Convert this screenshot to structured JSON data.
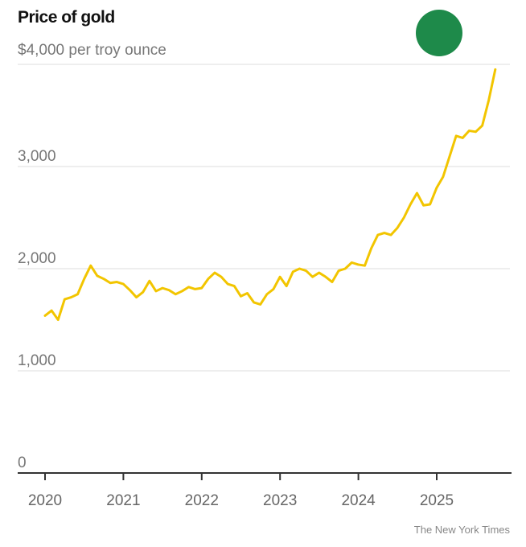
{
  "chart_data": {
    "type": "line",
    "title": "Price of gold",
    "ylabel": "$4,000 per troy ounce",
    "credit": "The New York Times",
    "ylim": [
      0,
      4000
    ],
    "xlim": [
      2019.92,
      2025.95
    ],
    "y_ticks": [
      {
        "value": 3000,
        "label": "3,000"
      },
      {
        "value": 2000,
        "label": "2,000"
      },
      {
        "value": 1000,
        "label": "1,000"
      },
      {
        "value": 0,
        "label": "0"
      }
    ],
    "x_ticks": [
      {
        "value": 2020,
        "label": "2020"
      },
      {
        "value": 2021,
        "label": "2021"
      },
      {
        "value": 2022,
        "label": "2022"
      },
      {
        "value": 2023,
        "label": "2023"
      },
      {
        "value": 2024,
        "label": "2024"
      },
      {
        "value": 2025,
        "label": "2025"
      }
    ],
    "grid": true,
    "line_color": "#f2c500",
    "series": [
      {
        "name": "Gold price (USD per troy ounce)",
        "start": 2020.0,
        "step_years": 0.0833,
        "values": [
          1540,
          1590,
          1500,
          1700,
          1720,
          1750,
          1900,
          2030,
          1930,
          1900,
          1860,
          1870,
          1850,
          1790,
          1720,
          1770,
          1880,
          1780,
          1810,
          1790,
          1750,
          1780,
          1820,
          1800,
          1810,
          1900,
          1960,
          1920,
          1850,
          1830,
          1730,
          1760,
          1670,
          1650,
          1750,
          1800,
          1920,
          1830,
          1970,
          2000,
          1980,
          1920,
          1960,
          1920,
          1870,
          1980,
          2000,
          2060,
          2040,
          2030,
          2200,
          2330,
          2350,
          2330,
          2400,
          2500,
          2630,
          2740,
          2620,
          2630,
          2790,
          2900,
          3100,
          3300,
          3280,
          3350,
          3340,
          3400,
          3650,
          3950
        ]
      }
    ]
  }
}
